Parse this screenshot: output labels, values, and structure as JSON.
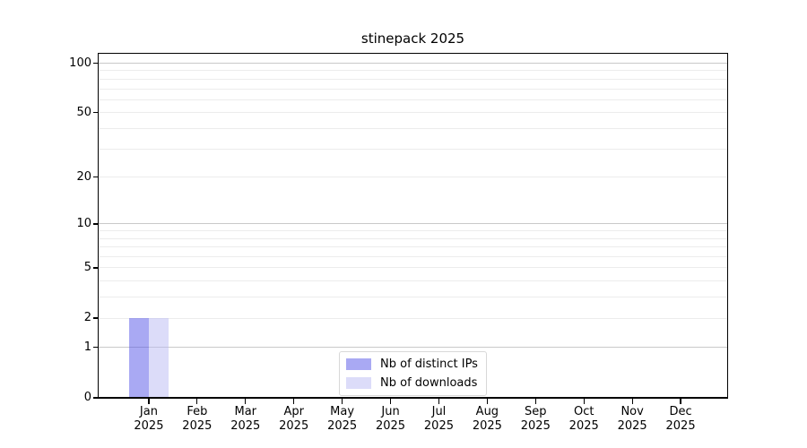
{
  "chart_data": {
    "type": "bar",
    "title": "stinepack 2025",
    "categories": [
      "Jan 2025",
      "Feb 2025",
      "Mar 2025",
      "Apr 2025",
      "May 2025",
      "Jun 2025",
      "Jul 2025",
      "Aug 2025",
      "Sep 2025",
      "Oct 2025",
      "Nov 2025",
      "Dec 2025"
    ],
    "series": [
      {
        "name": "Nb of distinct IPs",
        "color": "#5353e7",
        "fill_alpha": 0.5,
        "values": [
          2,
          0,
          0,
          0,
          0,
          0,
          0,
          0,
          0,
          0,
          0,
          0
        ]
      },
      {
        "name": "Nb of downloads",
        "color": "#b9b9f3",
        "fill_alpha": 0.5,
        "values": [
          2,
          0,
          0,
          0,
          0,
          0,
          0,
          0,
          0,
          0,
          0,
          0
        ]
      }
    ],
    "xlabel": "",
    "ylabel": "",
    "yscale": "log1p",
    "ylim": [
      0,
      113
    ],
    "yticks": [
      0,
      1,
      2,
      5,
      10,
      20,
      50,
      100
    ],
    "yticks_minor": [
      2,
      3,
      4,
      5,
      6,
      7,
      8,
      9,
      20,
      30,
      40,
      50,
      60,
      70,
      80,
      90
    ],
    "grid": true,
    "legend_position": "lower center",
    "colors": {
      "axis": "#000000",
      "text": "#000000",
      "grid_major": "#c9c9c9",
      "grid_minor": "#ececec",
      "legend_border": "#d8d8d8",
      "background": "#ffffff"
    }
  }
}
